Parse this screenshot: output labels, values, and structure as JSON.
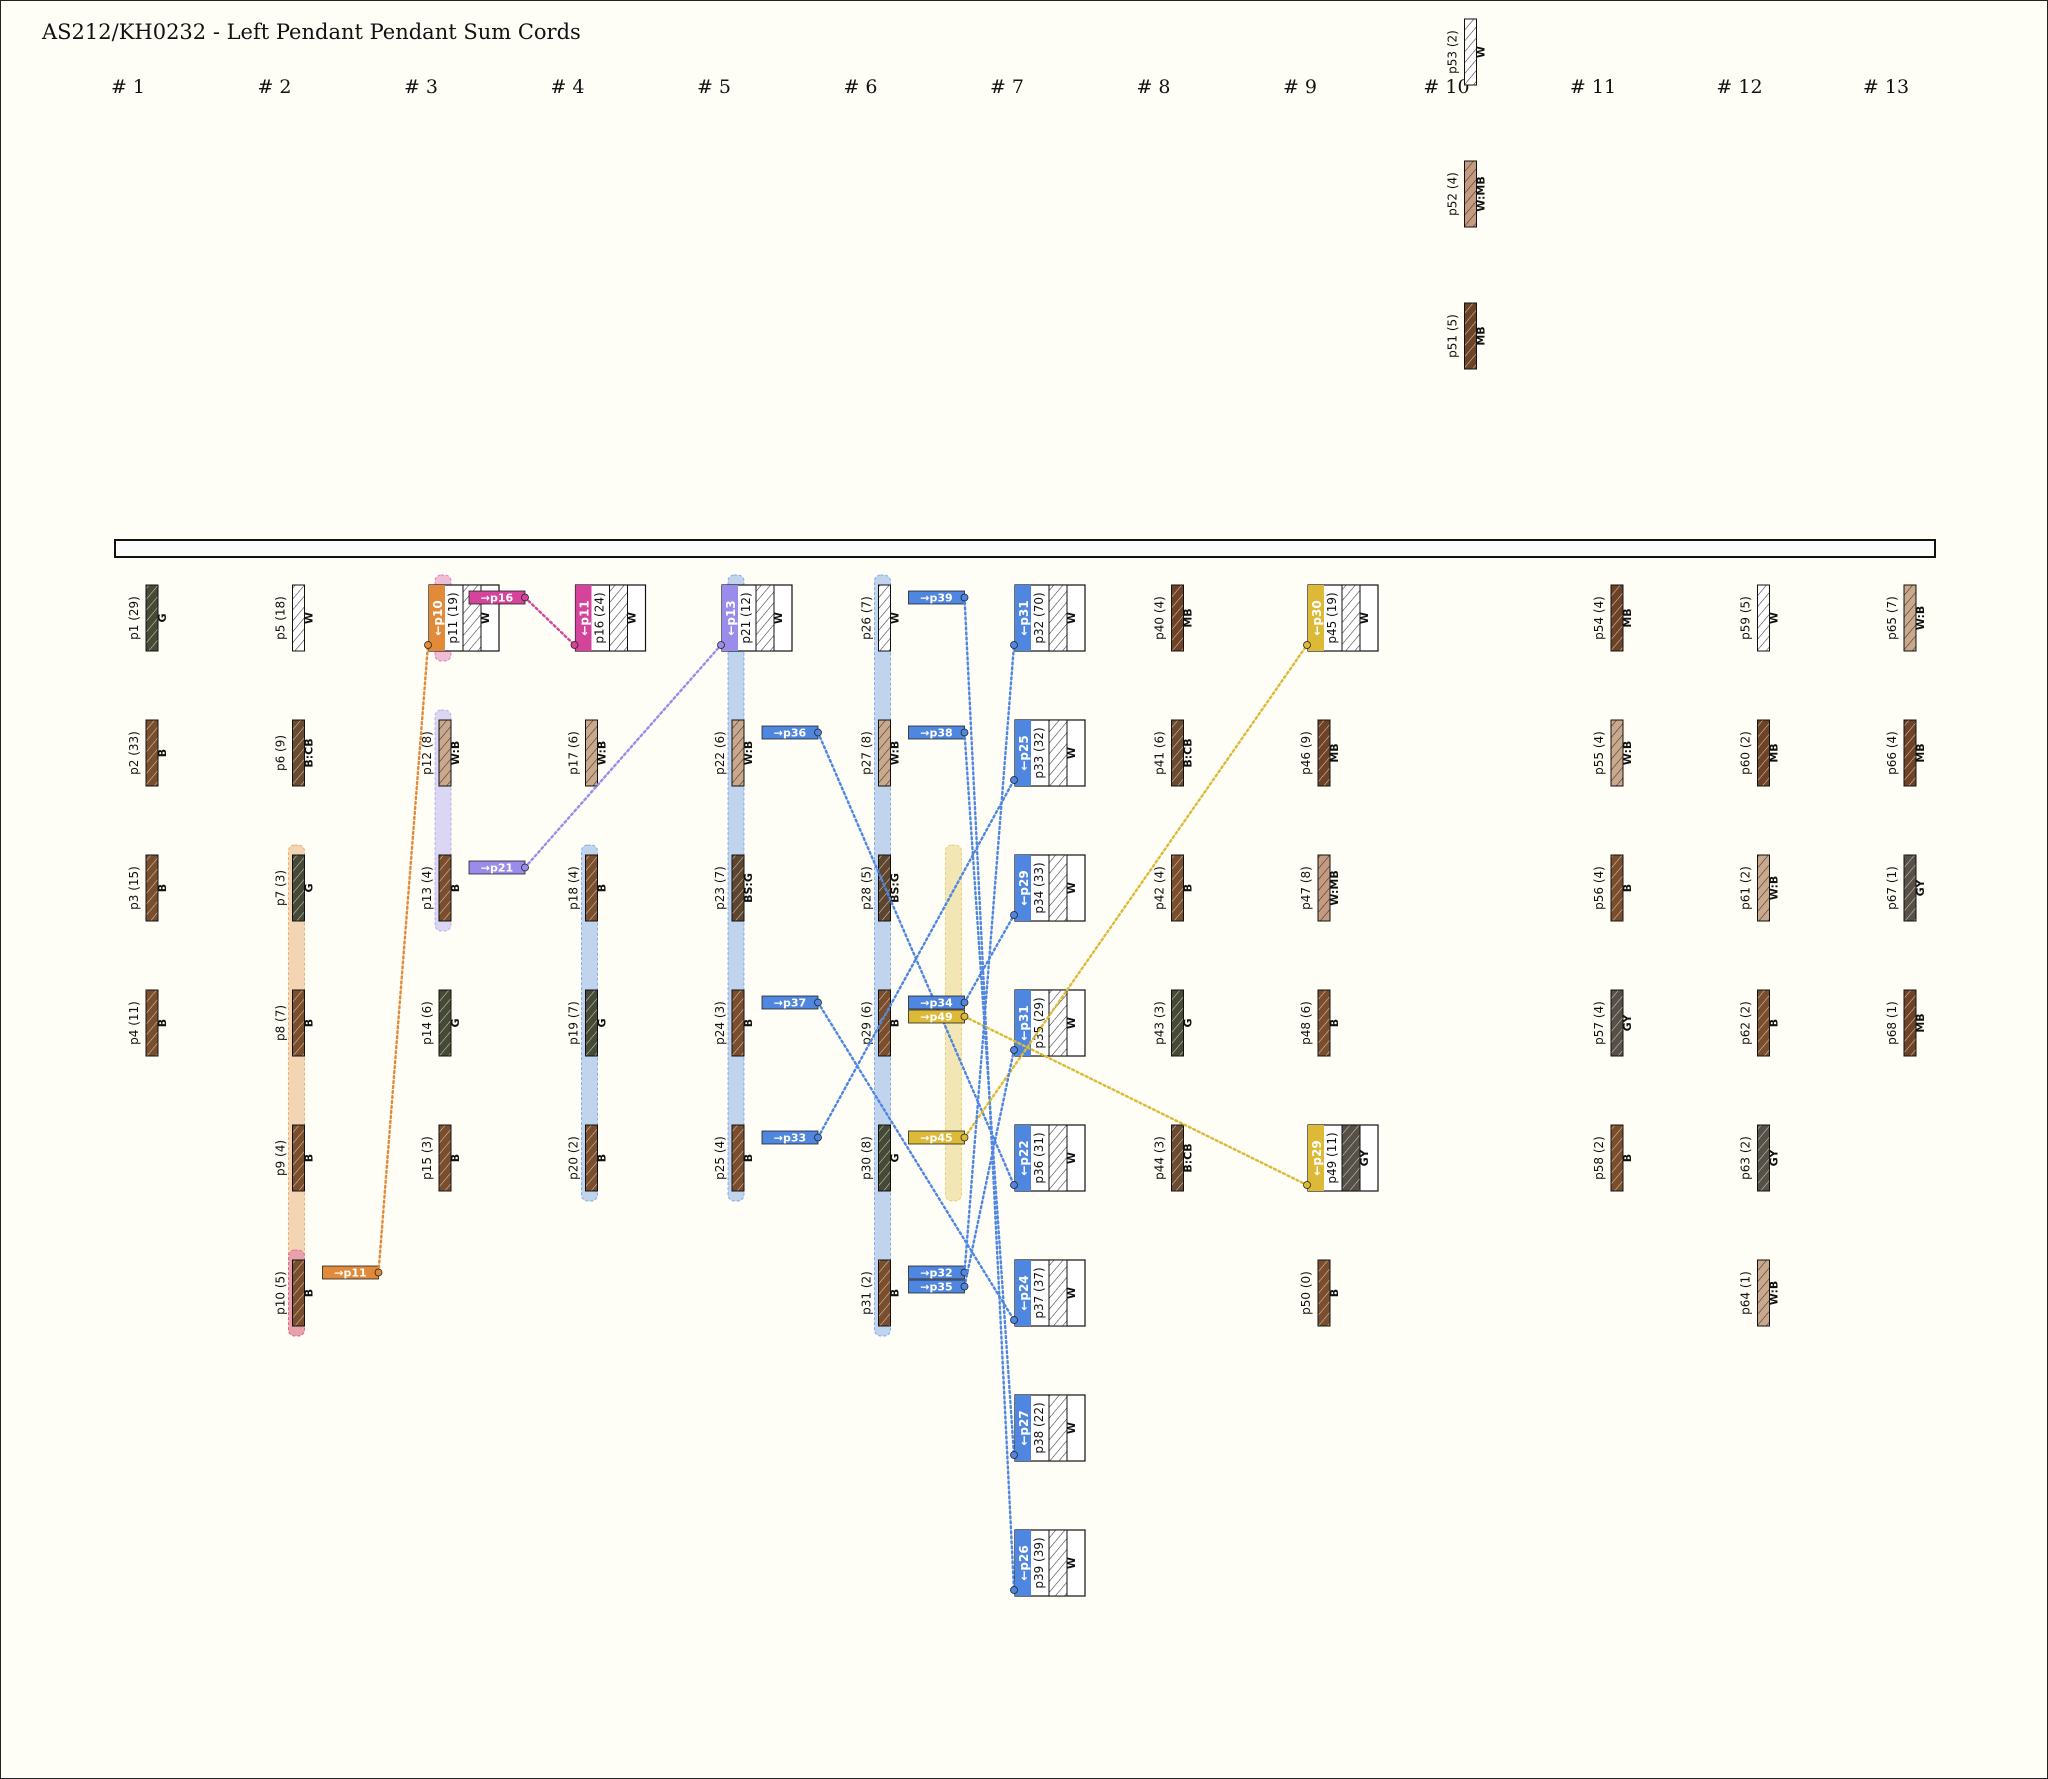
{
  "title": "AS212/KH0232 - Left Pendant Pendant Sum Cords",
  "groups": [
    "# 1",
    "# 2",
    "# 3",
    "# 4",
    "# 5",
    "# 6",
    "# 7",
    "# 8",
    "# 9",
    "# 10",
    "# 11",
    "# 12",
    "# 13"
  ],
  "colors": {
    "W": "#ffffff",
    "B": "#7a4e2d",
    "MB": "#6e4226",
    "G": "#454a36",
    "GY": "#555048",
    "B:CB": "#6a4a30",
    "W:B": "#c9a88c",
    "W:MB": "#c49a80",
    "BS:G": "#5d4630",
    "blue": "#4f86e0",
    "violet": "#9a8cea",
    "orange": "#e08a3a",
    "magenta": "#d4449a",
    "gold": "#dcba38"
  },
  "cords": [
    {
      "group": 10,
      "row": -3,
      "label": "p53 (2)",
      "color": "W"
    },
    {
      "group": 10,
      "row": -2,
      "label": "p52 (4)",
      "color": "W:MB"
    },
    {
      "group": 10,
      "row": -1,
      "label": "p51 (5)",
      "color": "MB"
    },
    {
      "group": 1,
      "row": 0,
      "label": "p1 (29)",
      "color": "G"
    },
    {
      "group": 1,
      "row": 1,
      "label": "p2 (33)",
      "color": "B"
    },
    {
      "group": 1,
      "row": 2,
      "label": "p3 (15)",
      "color": "B"
    },
    {
      "group": 1,
      "row": 3,
      "label": "p4 (11)",
      "color": "B"
    },
    {
      "group": 2,
      "row": 0,
      "label": "p5 (18)",
      "color": "W"
    },
    {
      "group": 2,
      "row": 1,
      "label": "p6 (9)",
      "color": "B:CB"
    },
    {
      "group": 2,
      "row": 2,
      "label": "p7 (3)",
      "color": "G"
    },
    {
      "group": 2,
      "row": 3,
      "label": "p8 (7)",
      "color": "B"
    },
    {
      "group": 2,
      "row": 4,
      "label": "p9 (4)",
      "color": "B"
    },
    {
      "group": 2,
      "row": 5,
      "label": "p10 (5)",
      "color": "B"
    },
    {
      "group": 3,
      "row": 0,
      "label": "p11 (19)",
      "color": "W",
      "sum": true,
      "tag": "←p10",
      "tagColor": "orange"
    },
    {
      "group": 3,
      "row": 1,
      "label": "p12 (8)",
      "color": "W:B"
    },
    {
      "group": 3,
      "row": 2,
      "label": "p13 (4)",
      "color": "B"
    },
    {
      "group": 3,
      "row": 3,
      "label": "p14 (6)",
      "color": "G"
    },
    {
      "group": 3,
      "row": 4,
      "label": "p15 (3)",
      "color": "B"
    },
    {
      "group": 4,
      "row": 0,
      "label": "p16 (24)",
      "color": "W",
      "sum": true,
      "tag": "←p11",
      "tagColor": "magenta"
    },
    {
      "group": 4,
      "row": 1,
      "label": "p17 (6)",
      "color": "W:B"
    },
    {
      "group": 4,
      "row": 2,
      "label": "p18 (4)",
      "color": "B"
    },
    {
      "group": 4,
      "row": 3,
      "label": "p19 (7)",
      "color": "G"
    },
    {
      "group": 4,
      "row": 4,
      "label": "p20 (2)",
      "color": "B"
    },
    {
      "group": 5,
      "row": 0,
      "label": "p21 (12)",
      "color": "W",
      "sum": true,
      "tag": "←p13",
      "tagColor": "violet"
    },
    {
      "group": 5,
      "row": 1,
      "label": "p22 (6)",
      "color": "W:B"
    },
    {
      "group": 5,
      "row": 2,
      "label": "p23 (7)",
      "color": "BS:G"
    },
    {
      "group": 5,
      "row": 3,
      "label": "p24 (3)",
      "color": "B"
    },
    {
      "group": 5,
      "row": 4,
      "label": "p25 (4)",
      "color": "B"
    },
    {
      "group": 6,
      "row": 0,
      "label": "p26 (7)",
      "color": "W"
    },
    {
      "group": 6,
      "row": 1,
      "label": "p27 (8)",
      "color": "W:B"
    },
    {
      "group": 6,
      "row": 2,
      "label": "p28 (5)",
      "color": "BS:G"
    },
    {
      "group": 6,
      "row": 3,
      "label": "p29 (6)",
      "color": "B"
    },
    {
      "group": 6,
      "row": 4,
      "label": "p30 (8)",
      "color": "G"
    },
    {
      "group": 6,
      "row": 5,
      "label": "p31 (2)",
      "color": "B"
    },
    {
      "group": 7,
      "row": 0,
      "label": "p32 (70)",
      "color": "W",
      "sum": true,
      "tag": "←p31",
      "tagColor": "blue"
    },
    {
      "group": 7,
      "row": 1,
      "label": "p33 (32)",
      "color": "W",
      "sum": true,
      "tag": "←p25",
      "tagColor": "blue"
    },
    {
      "group": 7,
      "row": 2,
      "label": "p34 (33)",
      "color": "W",
      "sum": true,
      "tag": "←p29",
      "tagColor": "blue"
    },
    {
      "group": 7,
      "row": 3,
      "label": "p35 (29)",
      "color": "W",
      "sum": true,
      "tag": "←p31",
      "tagColor": "blue"
    },
    {
      "group": 7,
      "row": 4,
      "label": "p36 (31)",
      "color": "W",
      "sum": true,
      "tag": "←p22",
      "tagColor": "blue"
    },
    {
      "group": 7,
      "row": 5,
      "label": "p37 (37)",
      "color": "W",
      "sum": true,
      "tag": "←p24",
      "tagColor": "blue"
    },
    {
      "group": 7,
      "row": 6,
      "label": "p38 (22)",
      "color": "W",
      "sum": true,
      "tag": "←p27",
      "tagColor": "blue"
    },
    {
      "group": 7,
      "row": 7,
      "label": "p39 (39)",
      "color": "W",
      "sum": true,
      "tag": "←p26",
      "tagColor": "blue"
    },
    {
      "group": 8,
      "row": 0,
      "label": "p40 (4)",
      "color": "MB"
    },
    {
      "group": 8,
      "row": 1,
      "label": "p41 (6)",
      "color": "B:CB"
    },
    {
      "group": 8,
      "row": 2,
      "label": "p42 (4)",
      "color": "B"
    },
    {
      "group": 8,
      "row": 3,
      "label": "p43 (3)",
      "color": "G"
    },
    {
      "group": 8,
      "row": 4,
      "label": "p44 (3)",
      "color": "B:CB"
    },
    {
      "group": 9,
      "row": 0,
      "label": "p45 (19)",
      "color": "W",
      "sum": true,
      "tag": "←p30",
      "tagColor": "gold"
    },
    {
      "group": 9,
      "row": 1,
      "label": "p46 (9)",
      "color": "MB"
    },
    {
      "group": 9,
      "row": 2,
      "label": "p47 (8)",
      "color": "W:MB"
    },
    {
      "group": 9,
      "row": 3,
      "label": "p48 (6)",
      "color": "B"
    },
    {
      "group": 9,
      "row": 4,
      "label": "p49 (11)",
      "color": "GY",
      "sum": true,
      "tag": "←p29",
      "tagColor": "gold"
    },
    {
      "group": 9,
      "row": 5,
      "label": "p50 (0)",
      "color": "B"
    },
    {
      "group": 11,
      "row": 0,
      "label": "p54 (4)",
      "color": "MB"
    },
    {
      "group": 11,
      "row": 1,
      "label": "p55 (4)",
      "color": "W:B"
    },
    {
      "group": 11,
      "row": 2,
      "label": "p56 (4)",
      "color": "B"
    },
    {
      "group": 11,
      "row": 3,
      "label": "p57 (4)",
      "color": "GY"
    },
    {
      "group": 11,
      "row": 4,
      "label": "p58 (2)",
      "color": "B"
    },
    {
      "group": 12,
      "row": 0,
      "label": "p59 (5)",
      "color": "W"
    },
    {
      "group": 12,
      "row": 1,
      "label": "p60 (2)",
      "color": "MB"
    },
    {
      "group": 12,
      "row": 2,
      "label": "p61 (2)",
      "color": "W:B"
    },
    {
      "group": 12,
      "row": 3,
      "label": "p62 (2)",
      "color": "B"
    },
    {
      "group": 12,
      "row": 4,
      "label": "p63 (2)",
      "color": "GY"
    },
    {
      "group": 12,
      "row": 5,
      "label": "p64 (1)",
      "color": "W:B"
    },
    {
      "group": 13,
      "row": 0,
      "label": "p65 (7)",
      "color": "W:B"
    },
    {
      "group": 13,
      "row": 1,
      "label": "p66 (4)",
      "color": "MB"
    },
    {
      "group": 13,
      "row": 2,
      "label": "p67 (1)",
      "color": "GY"
    },
    {
      "group": 13,
      "row": 3,
      "label": "p68 (1)",
      "color": "MB"
    }
  ],
  "arrows": [
    {
      "label": "→p11",
      "color": "orange",
      "from": [
        2,
        5
      ],
      "to": [
        3,
        0
      ]
    },
    {
      "label": "→p16",
      "color": "magenta",
      "from": [
        3,
        0
      ],
      "to": [
        4,
        0
      ]
    },
    {
      "label": "→p21",
      "color": "violet",
      "from": [
        3,
        2
      ],
      "to": [
        5,
        0
      ]
    },
    {
      "label": "→p36",
      "color": "blue",
      "from": [
        5,
        1
      ],
      "to": [
        7,
        4
      ]
    },
    {
      "label": "→p37",
      "color": "blue",
      "from": [
        5,
        3
      ],
      "to": [
        7,
        5
      ]
    },
    {
      "label": "→p33",
      "color": "blue",
      "from": [
        5,
        4
      ],
      "to": [
        7,
        1
      ]
    },
    {
      "label": "→p39",
      "color": "blue",
      "from": [
        6,
        0
      ],
      "to": [
        7,
        7
      ]
    },
    {
      "label": "→p38",
      "color": "blue",
      "from": [
        6,
        1
      ],
      "to": [
        7,
        6
      ]
    },
    {
      "label": "→p34",
      "color": "blue",
      "from": [
        6,
        3
      ],
      "to": [
        7,
        2
      ],
      "slot": 0
    },
    {
      "label": "→p49",
      "color": "gold",
      "from": [
        6,
        3
      ],
      "to": [
        9,
        4
      ],
      "slot": 1
    },
    {
      "label": "→p45",
      "color": "gold",
      "from": [
        6,
        4
      ],
      "to": [
        9,
        0
      ]
    },
    {
      "label": "→p32",
      "color": "blue",
      "from": [
        6,
        5
      ],
      "to": [
        7,
        0
      ],
      "slot": 0
    },
    {
      "label": "→p35",
      "color": "blue",
      "from": [
        6,
        5
      ],
      "to": [
        7,
        3
      ],
      "slot": 1
    }
  ],
  "bands": [
    {
      "group": 2,
      "rows": [
        2,
        5
      ],
      "color": "orange",
      "side": "left"
    },
    {
      "group": 2,
      "rows": [
        5,
        5
      ],
      "color": "magenta",
      "side": "left"
    },
    {
      "group": 3,
      "rows": [
        0,
        0
      ],
      "color": "magenta",
      "side": "left"
    },
    {
      "group": 3,
      "rows": [
        1,
        2
      ],
      "color": "violet",
      "side": "left"
    },
    {
      "group": 4,
      "rows": [
        2,
        4
      ],
      "color": "blue",
      "side": "left"
    },
    {
      "group": 5,
      "rows": [
        0,
        4
      ],
      "color": "blue",
      "side": "left"
    },
    {
      "group": 6,
      "rows": [
        0,
        5
      ],
      "color": "blue",
      "side": "left"
    },
    {
      "group": 6,
      "rows": [
        2,
        4
      ],
      "color": "gold",
      "side": "right"
    }
  ]
}
